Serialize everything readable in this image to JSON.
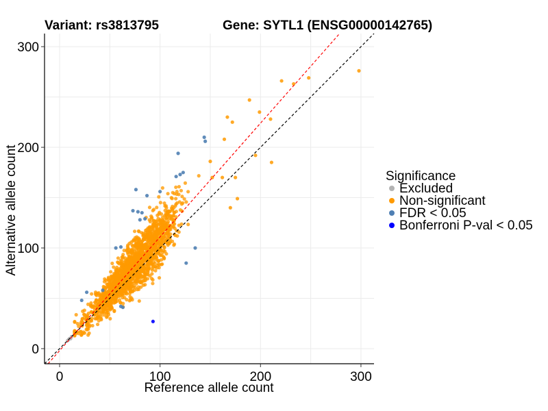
{
  "chart_data": {
    "type": "scatter",
    "title_left": "Variant: rs3813795",
    "title_right": "Gene: SYTL1 (ENSG00000142765)",
    "xlabel": "Reference allele count",
    "ylabel": "Alternative allele count",
    "xlim": [
      -15,
      313
    ],
    "ylim": [
      -15,
      313
    ],
    "x_ticks": [
      0,
      100,
      200,
      300
    ],
    "y_ticks": [
      0,
      100,
      200,
      300
    ],
    "grid": true,
    "reference_lines": [
      {
        "label": "y = x",
        "slope": 1,
        "intercept": 0,
        "color": "#000000",
        "style": "dashed"
      },
      {
        "label": "fitted",
        "slope": 1.13,
        "intercept": -2,
        "color": "#ff0000",
        "style": "dashed"
      }
    ],
    "legend": {
      "title": "Significance",
      "position": "right",
      "entries": [
        {
          "label": "Excluded",
          "color": "#b3b3b3"
        },
        {
          "label": "Non-significant",
          "color": "#ff9a00"
        },
        {
          "label": "FDR < 0.05",
          "color": "#4f7fb3"
        },
        {
          "label": "Bonferroni P-val < 0.05",
          "color": "#0000ff"
        }
      ]
    },
    "series": [
      {
        "name": "Excluded",
        "color": "#b3b3b3",
        "points": [
          [
            8,
            8
          ],
          [
            10,
            10
          ],
          [
            12,
            12
          ],
          [
            11,
            10
          ],
          [
            9,
            9
          ]
        ]
      },
      {
        "name": "FDR < 0.05",
        "color": "#4f7fb3",
        "points": [
          [
            144,
            210
          ],
          [
            145,
            206
          ],
          [
            118,
            194
          ],
          [
            123,
            175
          ],
          [
            120,
            173
          ],
          [
            116,
            171
          ],
          [
            100,
            156
          ],
          [
            76,
            158
          ],
          [
            87,
            152
          ],
          [
            78,
            136
          ],
          [
            82,
            135
          ],
          [
            80,
            128
          ],
          [
            85,
            129
          ],
          [
            73,
            137
          ],
          [
            56,
            100
          ],
          [
            61,
            101
          ],
          [
            27,
            56
          ],
          [
            22,
            48
          ],
          [
            43,
            58
          ],
          [
            126,
            85
          ],
          [
            135,
            100
          ],
          [
            61,
            42
          ],
          [
            63,
            41
          ]
        ]
      },
      {
        "name": "Bonferroni P-val < 0.05",
        "color": "#0000ff",
        "points": [
          [
            93,
            27
          ]
        ]
      }
    ],
    "nonsignificant_extremes": [
      [
        298,
        276
      ],
      [
        221,
        266
      ],
      [
        248,
        269
      ],
      [
        233,
        263
      ],
      [
        189,
        247
      ],
      [
        199,
        235
      ],
      [
        210,
        228
      ],
      [
        211,
        185
      ],
      [
        195,
        192
      ],
      [
        167,
        230
      ],
      [
        172,
        225
      ],
      [
        164,
        208
      ],
      [
        175,
        170
      ],
      [
        162,
        170
      ],
      [
        150,
        186
      ],
      [
        152,
        170
      ],
      [
        170,
        140
      ],
      [
        177,
        149
      ]
    ]
  }
}
